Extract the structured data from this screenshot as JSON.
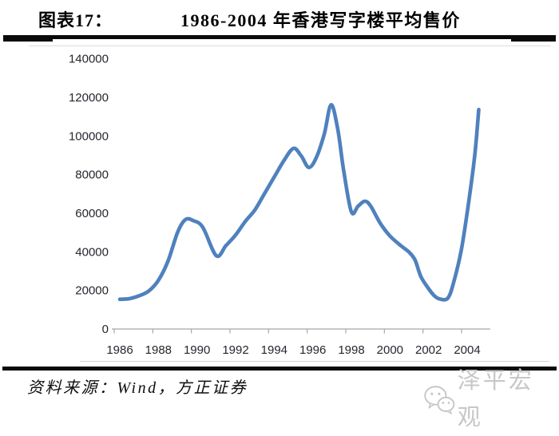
{
  "header": {
    "figure_label": "图表17：",
    "title": "1986-2004 年香港写字楼平均售价"
  },
  "footer": {
    "source": "资料来源：Wind，方正证券",
    "watermark": "泽平宏观",
    "watermark_icon": "wechat-icon"
  },
  "colors": {
    "line": "#4F81BD",
    "axis": "#A8A8A8",
    "tick_label": "#26262e",
    "rule": "#0a0a0a",
    "watermark": "#c7c7c7",
    "background": "#ffffff"
  },
  "chart_data": {
    "type": "line",
    "title": "1986-2004 年香港写字楼平均售价",
    "xlabel": "",
    "ylabel": "",
    "legend": false,
    "grid": false,
    "ylim": [
      0,
      140000
    ],
    "xlim": [
      1986,
      2005.2
    ],
    "yticks": [
      0,
      20000,
      40000,
      60000,
      80000,
      100000,
      120000,
      140000
    ],
    "xticks": [
      1986,
      1988,
      1990,
      1992,
      1994,
      1996,
      1998,
      2000,
      2002,
      2004
    ],
    "line_color": "#4F81BD",
    "x": [
      1986,
      1986.5,
      1987,
      1987.5,
      1988,
      1988.5,
      1989,
      1989.4,
      1989.8,
      1990.3,
      1991,
      1991.5,
      1992,
      1992.5,
      1993,
      1993.5,
      1994,
      1994.5,
      1995,
      1995.4,
      1995.8,
      1996.2,
      1996.6,
      1996.95,
      1997.3,
      1997.6,
      1998,
      1998.35,
      1998.7,
      1999,
      1999.5,
      2000,
      2000.5,
      2001,
      2001.3,
      2001.6,
      2002,
      2002.3,
      2002.6,
      2003,
      2003.3,
      2003.7,
      2004.1,
      2004.4,
      2004.6
    ],
    "values": [
      15200,
      15500,
      17000,
      19500,
      25000,
      35000,
      50000,
      56500,
      56000,
      52500,
      37800,
      43000,
      48500,
      55500,
      61500,
      70000,
      78500,
      87000,
      93400,
      89500,
      83500,
      89000,
      101000,
      116000,
      103000,
      82000,
      60500,
      63500,
      66000,
      63500,
      54500,
      48000,
      43500,
      39500,
      35500,
      27000,
      20700,
      17000,
      15300,
      15800,
      24000,
      41000,
      67000,
      90500,
      113500
    ]
  }
}
